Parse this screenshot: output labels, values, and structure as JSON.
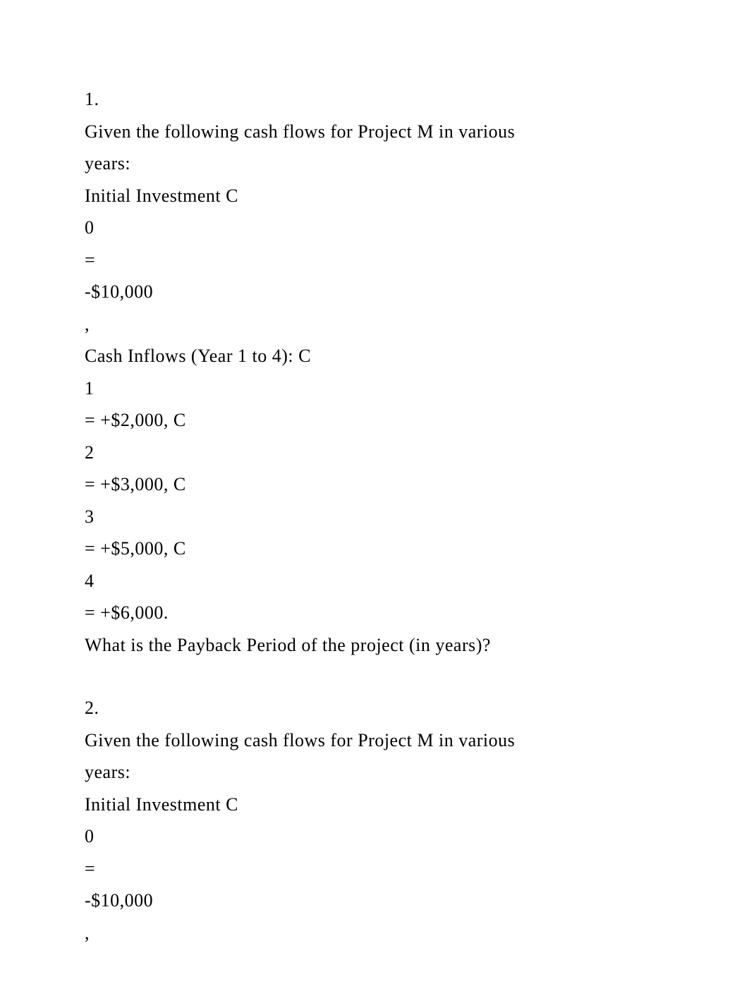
{
  "q1": {
    "num": "1.",
    "intro_a": "Given the following cash flows for Project M in various",
    "intro_b": "years:",
    "init_label": "Initial Investment C",
    "c0_sub": "0",
    "eq": " =",
    "c0_val": "-$10,000",
    "comma": ",",
    "inflow_label": "Cash Inflows (Year 1 to 4): C",
    "c1_sub": "1",
    "c1_val": " = +$2,000, C",
    "c2_sub": "2",
    "c2_val": " = +$3,000, C",
    "c3_sub": "3",
    "c3_val": " = +$5,000, C",
    "c4_sub": "4",
    "c4_val": " = +$6,000.",
    "question": "What is the Payback Period of the project (in years)?"
  },
  "q2": {
    "num": "2.",
    "intro_a": "Given the following cash flows for Project M in various",
    "intro_b": "years:",
    "init_label": "Initial Investment C",
    "c0_sub": "0",
    "eq": " =",
    "c0_val": "-$10,000",
    "comma": ","
  }
}
